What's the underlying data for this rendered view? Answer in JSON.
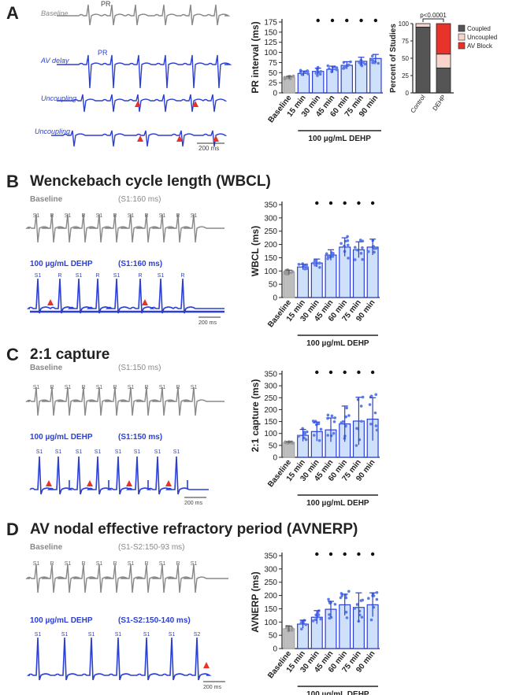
{
  "panels": [
    {
      "letter": "A",
      "title": ""
    },
    {
      "letter": "B",
      "title": "Wenckebach cycle length (WBCL)"
    },
    {
      "letter": "C",
      "title": "2:1 capture"
    },
    {
      "letter": "D",
      "title": "AV nodal effective refractory period (AVNERP)"
    }
  ],
  "traces": {
    "A": {
      "labels": [
        "Baseline",
        "AV delay",
        "Uncoupling",
        "Uncoupling"
      ],
      "pr_marker": "PR",
      "scale": "200 ms"
    },
    "B": {
      "baseline": "Baseline",
      "baseline_protocol": "(S1:160 ms)",
      "dehp": "100 µg/mL DEHP",
      "dehp_protocol": "(S1:160 ms)",
      "scale": "200 ms",
      "beat_labels": [
        "S1",
        "R"
      ]
    },
    "C": {
      "baseline": "Baseline",
      "baseline_protocol": "(S1:150 ms)",
      "dehp": "100 µg/mL DEHP",
      "dehp_protocol": "(S1:150 ms)",
      "scale": "200 ms",
      "beat_labels": [
        "S1",
        "R"
      ]
    },
    "D": {
      "baseline": "Baseline",
      "baseline_protocol": "(S1-S2:150-93 ms)",
      "dehp": "100 µg/mL DEHP",
      "dehp_protocol": "(S1-S2:150-140 ms)",
      "scale": "200 ms",
      "beat_labels": [
        "S1",
        "R",
        "S2"
      ]
    }
  },
  "chart_data": [
    {
      "type": "bar",
      "id": "pr",
      "categories": [
        "Baseline",
        "15 min",
        "30 min",
        "45 min",
        "60 min",
        "75 min",
        "90 min"
      ],
      "values": [
        38,
        48,
        53,
        58,
        68,
        78,
        85
      ],
      "errors": [
        3,
        6,
        8,
        8,
        9,
        10,
        10
      ],
      "significant": [
        false,
        false,
        true,
        true,
        true,
        true,
        true
      ],
      "ylabel": "PR interval (ms)",
      "ylim": [
        0,
        175
      ],
      "yticks": [
        0,
        25,
        50,
        75,
        100,
        125,
        150,
        175
      ],
      "xgroup_label": "100 µg/mL DEHP",
      "colors": {
        "baseline": "#bdbdbd",
        "treatment": "#cfe0fb",
        "edge": "#2b3fd6",
        "point": "#5a7be8"
      }
    },
    {
      "type": "bar",
      "id": "stack",
      "stacked": true,
      "categories": [
        "Control",
        "DEHP"
      ],
      "series": [
        {
          "name": "Coupled",
          "values": [
            95,
            36
          ],
          "color": "#555555"
        },
        {
          "name": "Uncoupled",
          "values": [
            5,
            20
          ],
          "color": "#f9d4cc"
        },
        {
          "name": "AV Block",
          "values": [
            0,
            44
          ],
          "color": "#e8332a"
        }
      ],
      "ylabel": "Percent of Studies",
      "ylim": [
        0,
        100
      ],
      "yticks": [
        0,
        25,
        50,
        75,
        100
      ],
      "annotation": "p<0.0001"
    },
    {
      "type": "bar",
      "id": "wbcl",
      "categories": [
        "Baseline",
        "15 min",
        "30 min",
        "45 min",
        "60 min",
        "75 min",
        "90 min"
      ],
      "values": [
        95,
        115,
        130,
        160,
        190,
        180,
        190
      ],
      "errors": [
        8,
        10,
        15,
        20,
        35,
        30,
        30
      ],
      "significant": [
        false,
        false,
        true,
        true,
        true,
        true,
        true
      ],
      "ylabel": "WBCL (ms)",
      "ylim": [
        0,
        350
      ],
      "yticks": [
        0,
        50,
        100,
        150,
        200,
        250,
        300,
        350
      ],
      "xgroup_label": "100 µg/mL DEHP"
    },
    {
      "type": "bar",
      "id": "capture",
      "categories": [
        "Baseline",
        "15 min",
        "30 min",
        "45 min",
        "60 min",
        "75 min",
        "90 min"
      ],
      "values": [
        62,
        92,
        108,
        115,
        140,
        152,
        160
      ],
      "errors": [
        3,
        25,
        40,
        50,
        75,
        100,
        90
      ],
      "significant": [
        false,
        false,
        true,
        true,
        true,
        true,
        true
      ],
      "ylabel": "2:1 capture (ms)",
      "ylim": [
        0,
        350
      ],
      "yticks": [
        0,
        50,
        100,
        150,
        200,
        250,
        300,
        350
      ],
      "xgroup_label": "100 µg/mL DEHP"
    },
    {
      "type": "bar",
      "id": "avnerp",
      "categories": [
        "Baseline",
        "15 min",
        "30 min",
        "45 min",
        "60 min",
        "75 min",
        "90 min"
      ],
      "values": [
        75,
        92,
        118,
        148,
        165,
        155,
        165
      ],
      "errors": [
        10,
        15,
        25,
        30,
        40,
        55,
        45
      ],
      "significant": [
        false,
        false,
        true,
        true,
        true,
        true,
        true
      ],
      "ylabel": "AVNERP (ms)",
      "ylim": [
        0,
        350
      ],
      "yticks": [
        0,
        50,
        100,
        150,
        200,
        250,
        300,
        350
      ],
      "xgroup_label": "100 µg/mL DEHP"
    }
  ]
}
